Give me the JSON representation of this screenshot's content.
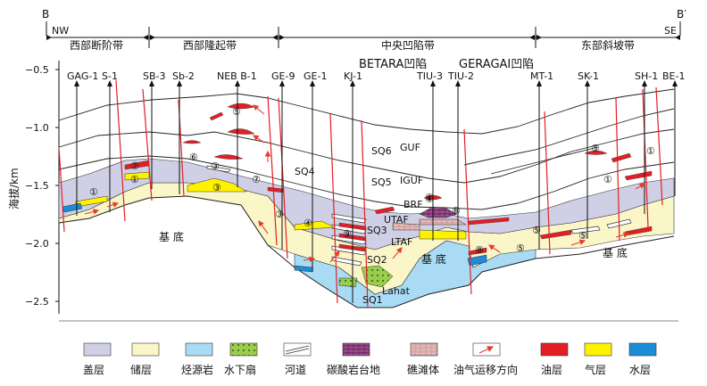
{
  "section": {
    "left_end": "B",
    "right_end": "B′",
    "dir_left": "NW",
    "dir_right": "SE",
    "zones": [
      "西部断阶带",
      "西部隆起带",
      "中央凹陷带",
      "东部斜坡带"
    ]
  },
  "axis": {
    "ylabel": "海拔/km",
    "ticks": [
      "−0.5",
      "−1.0",
      "−1.5",
      "−2.0",
      "−2.5"
    ]
  },
  "wells": [
    "GAG-1",
    "S-1",
    "SB-3",
    "Sb-2",
    "NEB B-1",
    "GE-9",
    "GE-1",
    "KJ-1",
    "TIU-3",
    "TIU-2",
    "MT-1",
    "SK-1",
    "SH-1",
    "BE-1"
  ],
  "subbasins": [
    "BETARA凹陷",
    "GERAGAI凹陷"
  ],
  "units": {
    "sq6": "SQ6",
    "guf": "GUF",
    "sq5": "SQ5",
    "iguf": "IGUF",
    "sq4": "SQ4",
    "brf": "BRF",
    "utaf": "UTAF",
    "sq3": "SQ3",
    "ltaf": "LTAF",
    "sq2": "SQ2",
    "sq1": "SQ1",
    "lahat": "Lahat",
    "basement_a": "基 底",
    "basement_b": "基 底",
    "basement_c": "基 底"
  },
  "circled": [
    "①",
    "①",
    "②",
    "③",
    "⑤",
    "⑥",
    "⑦",
    "③",
    "④",
    "④",
    "⑤",
    "⑥",
    "⑤",
    "⑤",
    "①",
    "⑤",
    "①",
    "③",
    "④",
    "⑨",
    "⑧"
  ],
  "legend": [
    {
      "label": "盖层",
      "key": "cap",
      "color": "#cfd0e6"
    },
    {
      "label": "储层",
      "key": "reservoir",
      "color": "#fbf6c8"
    },
    {
      "label": "烃源岩",
      "key": "source",
      "color": "#a9dcf4"
    },
    {
      "label": "水下扇",
      "key": "fan",
      "color": "#9acd4d"
    },
    {
      "label": "河道",
      "key": "channel",
      "color": "#ffffff"
    },
    {
      "label": "碳酸岩台地",
      "key": "carbonate",
      "color": "#7b2d6e"
    },
    {
      "label": "礁滩体",
      "key": "reef",
      "color": "#d8a5a5"
    },
    {
      "label": "油气运移方向",
      "key": "migration",
      "color": "#e63b2e"
    },
    {
      "label": "油层",
      "key": "oil",
      "color": "#e31e24"
    },
    {
      "label": "气层",
      "key": "gas",
      "color": "#fff200"
    },
    {
      "label": "水层",
      "key": "water",
      "color": "#1a8cd8"
    }
  ]
}
